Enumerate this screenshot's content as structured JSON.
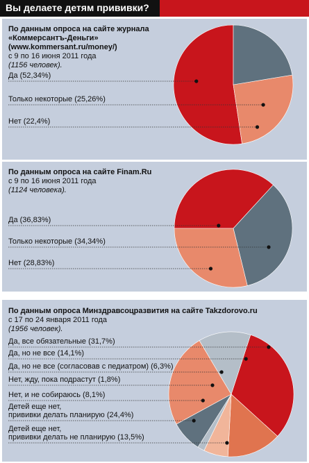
{
  "header": {
    "title": "Вы делаете детям прививки?"
  },
  "colors": {
    "red": "#c8151c",
    "salmon": "#e8896b",
    "slate": "#5f717e",
    "orange": "#e0744f",
    "peach": "#f1b59a",
    "light_gray": "#b4bec8",
    "dot": "#111111",
    "panel": "#c5cedd"
  },
  "panels": [
    {
      "caption_head": [
        "По данным опроса на сайте журнала",
        "«Коммерсантъ-Деньги»",
        "(www.kommersant.ru/money/)"
      ],
      "caption_dates": "с 9 по 16 июня 2011 года",
      "caption_sample": "(1156 человек)."
    },
    {
      "caption_head": [
        "По данным опроса на сайте Finam.Ru"
      ],
      "caption_dates": "с 9 по 16 июня 2011 года",
      "caption_sample": "(1124 человека)."
    },
    {
      "caption_head": [
        "По данным опроса Минздравсоцразвития на сайте Takzdorovo.ru"
      ],
      "caption_dates": "с 17 по 24 января 2011 года",
      "caption_sample": "(1956 человек)."
    }
  ],
  "chart_data": [
    {
      "type": "pie",
      "unit": "%",
      "labels": [
        "Да (52,34%)",
        "Только некоторые (25,26%)",
        "Нет (22,4%)"
      ],
      "categories": [
        "Да",
        "Только некоторые",
        "Нет"
      ],
      "values": [
        52.34,
        25.26,
        22.4
      ],
      "colors": [
        "#c8151c",
        "#e8896b",
        "#5f717e"
      ]
    },
    {
      "type": "pie",
      "unit": "%",
      "labels": [
        "Да (36,83%)",
        "Только некоторые (34,34%)",
        "Нет (28,83%)"
      ],
      "categories": [
        "Да",
        "Только некоторые",
        "Нет"
      ],
      "values": [
        36.83,
        34.34,
        28.83
      ],
      "colors": [
        "#c8151c",
        "#5f717e",
        "#e8896b"
      ]
    },
    {
      "type": "pie",
      "unit": "%",
      "labels": [
        "Да, все обязательные (31,7%)",
        "Да, но не все (14,1%)",
        "Да, но не все (согласовав с педиатром) (6,3%)",
        "Нет, жду, пока подрастут (1,8%)",
        "Нет, и не собираюсь (8,1%)",
        [
          "Детей еще нет,",
          "прививки делать планирую (24,4%)"
        ],
        [
          "Детей еще нет,",
          "прививки делать не планирую (13,5%)"
        ]
      ],
      "categories": [
        "Да, все обязательные",
        "Да, но не все",
        "Да, но не все (согласовав с педиатром)",
        "Нет, жду, пока подрастут",
        "Нет, и не собираюсь",
        "Детей еще нет, прививки делать планирую",
        "Детей еще нет, прививки делать не планирую"
      ],
      "values": [
        31.7,
        14.1,
        6.3,
        1.8,
        8.1,
        24.4,
        13.5
      ],
      "colors": [
        "#c8151c",
        "#e0744f",
        "#f1b59a",
        "#b4bec8",
        "#5f717e",
        "#e8896b",
        "#b4bec8"
      ]
    }
  ]
}
